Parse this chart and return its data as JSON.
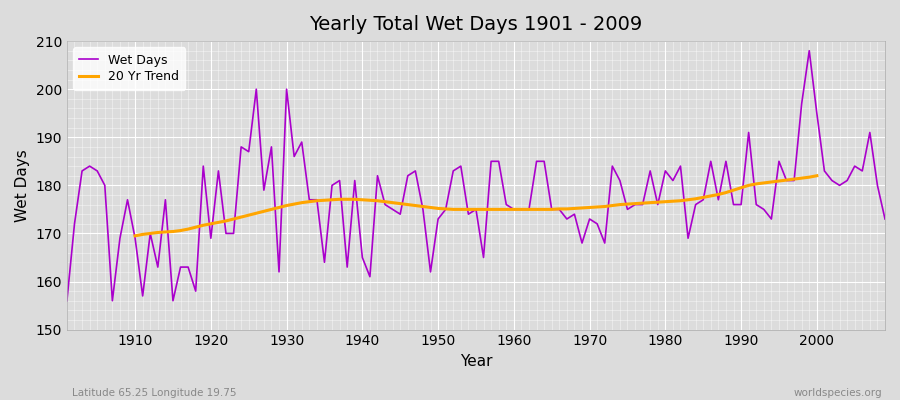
{
  "title": "Yearly Total Wet Days 1901 - 2009",
  "xlabel": "Year",
  "ylabel": "Wet Days",
  "lat_lon_label": "Latitude 65.25 Longitude 19.75",
  "watermark": "worldspecies.org",
  "ylim": [
    150,
    210
  ],
  "xlim": [
    1901,
    2009
  ],
  "yticks": [
    150,
    160,
    170,
    180,
    190,
    200,
    210
  ],
  "xticks": [
    1910,
    1920,
    1930,
    1940,
    1950,
    1960,
    1970,
    1980,
    1990,
    2000
  ],
  "wet_days_color": "#AA00CC",
  "trend_color": "#FFA500",
  "bg_color": "#DCDCDC",
  "plot_bg_color": "#DCDCDC",
  "legend_labels": [
    "Wet Days",
    "20 Yr Trend"
  ],
  "years": [
    1901,
    1902,
    1903,
    1904,
    1905,
    1906,
    1907,
    1908,
    1909,
    1910,
    1911,
    1912,
    1913,
    1914,
    1915,
    1916,
    1917,
    1918,
    1919,
    1920,
    1921,
    1922,
    1923,
    1924,
    1925,
    1926,
    1927,
    1928,
    1929,
    1930,
    1931,
    1932,
    1933,
    1934,
    1935,
    1936,
    1937,
    1938,
    1939,
    1940,
    1941,
    1942,
    1943,
    1944,
    1945,
    1946,
    1947,
    1948,
    1949,
    1950,
    1951,
    1952,
    1953,
    1954,
    1955,
    1956,
    1957,
    1958,
    1959,
    1960,
    1961,
    1962,
    1963,
    1964,
    1965,
    1966,
    1967,
    1968,
    1969,
    1970,
    1971,
    1972,
    1973,
    1974,
    1975,
    1976,
    1977,
    1978,
    1979,
    1980,
    1981,
    1982,
    1983,
    1984,
    1985,
    1986,
    1987,
    1988,
    1989,
    1990,
    1991,
    1992,
    1993,
    1994,
    1995,
    1996,
    1997,
    1998,
    1999,
    2000,
    2001,
    2002,
    2003,
    2004,
    2005,
    2006,
    2007,
    2008,
    2009
  ],
  "wet_days": [
    156,
    172,
    183,
    184,
    183,
    180,
    156,
    169,
    177,
    169,
    157,
    170,
    163,
    177,
    156,
    163,
    163,
    158,
    184,
    169,
    183,
    170,
    170,
    188,
    187,
    200,
    179,
    188,
    162,
    200,
    186,
    189,
    177,
    177,
    164,
    180,
    181,
    163,
    181,
    165,
    161,
    182,
    176,
    175,
    174,
    182,
    183,
    175,
    162,
    173,
    175,
    183,
    184,
    174,
    175,
    165,
    185,
    185,
    176,
    175,
    175,
    175,
    185,
    185,
    175,
    175,
    173,
    174,
    168,
    173,
    172,
    168,
    184,
    181,
    175,
    176,
    176,
    183,
    176,
    183,
    181,
    184,
    169,
    176,
    177,
    185,
    177,
    185,
    176,
    176,
    191,
    176,
    175,
    173,
    185,
    181,
    181,
    197,
    208,
    195,
    183,
    181,
    180,
    181,
    184,
    183,
    191,
    180,
    173
  ],
  "trend": [
    null,
    null,
    null,
    null,
    null,
    null,
    null,
    null,
    null,
    169.5,
    169.8,
    170.0,
    170.2,
    170.3,
    170.4,
    170.6,
    170.9,
    171.3,
    171.7,
    172.0,
    172.3,
    172.6,
    173.0,
    173.4,
    173.8,
    174.2,
    174.6,
    175.0,
    175.4,
    175.8,
    176.1,
    176.4,
    176.6,
    176.8,
    176.9,
    177.0,
    177.1,
    177.1,
    177.1,
    177.0,
    176.9,
    176.8,
    176.6,
    176.4,
    176.2,
    176.0,
    175.8,
    175.6,
    175.4,
    175.2,
    175.1,
    175.0,
    175.0,
    175.0,
    175.0,
    175.0,
    175.0,
    175.0,
    175.0,
    175.0,
    175.0,
    175.0,
    175.0,
    175.0,
    175.0,
    175.1,
    175.1,
    175.2,
    175.3,
    175.4,
    175.5,
    175.6,
    175.8,
    176.0,
    176.1,
    176.2,
    176.3,
    176.4,
    176.5,
    176.6,
    176.7,
    176.8,
    177.0,
    177.2,
    177.5,
    177.8,
    178.1,
    178.5,
    179.0,
    179.5,
    180.0,
    180.3,
    180.5,
    180.7,
    180.9,
    181.1,
    181.3,
    181.5,
    181.7,
    182.0,
    null,
    null,
    null,
    null,
    null,
    null,
    null,
    null,
    null
  ]
}
